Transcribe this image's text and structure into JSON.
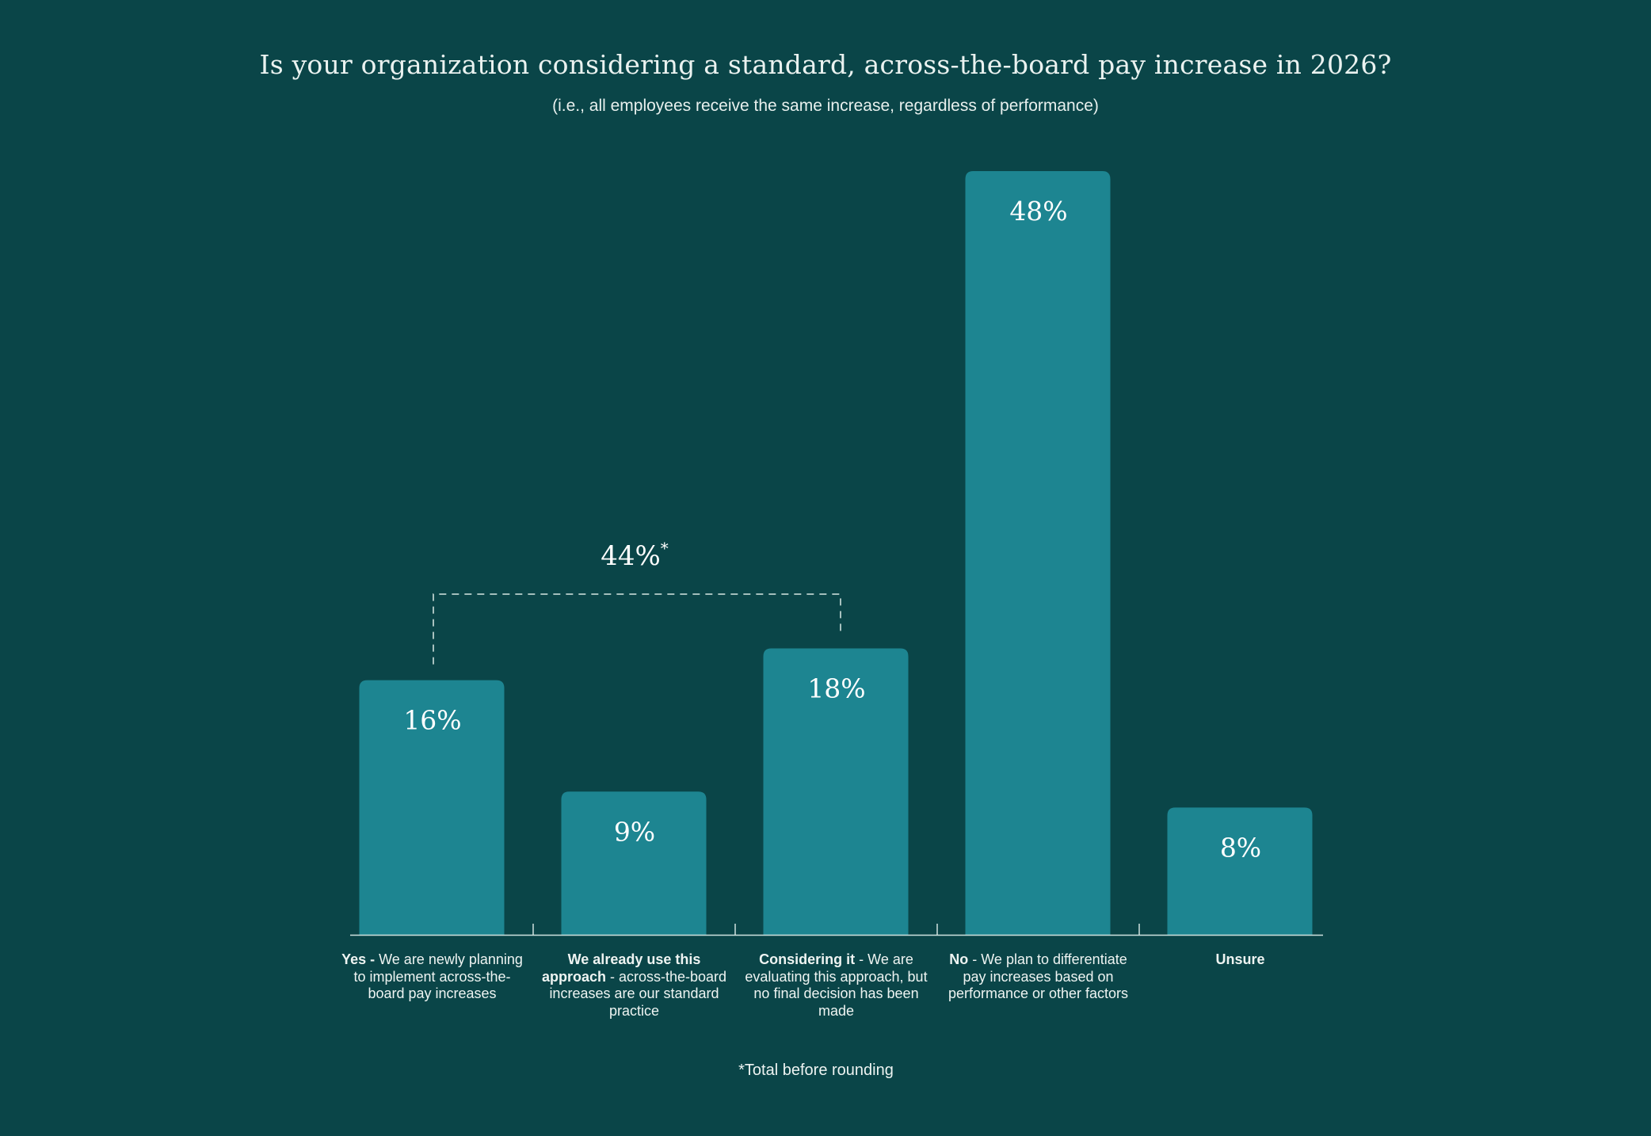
{
  "chart_data": {
    "type": "bar",
    "title": "Is your organization considering a standard, across-the-board pay increase in 2026?",
    "subtitle": "(i.e., all employees receive the same increase, regardless of performance)",
    "categories": [
      {
        "bold": "Yes -",
        "rest": " We are newly planning to implement across-the-board pay increases"
      },
      {
        "bold": "We already use this approach",
        "rest": " - across-the-board increases are our standard practice"
      },
      {
        "bold": "Considering it",
        "rest": " - We are evaluating this approach, but no final decision has been made"
      },
      {
        "bold": "No",
        "rest": " - We plan to differentiate pay increases based on performance or other factors"
      },
      {
        "bold": "Unsure",
        "rest": ""
      }
    ],
    "values": [
      16,
      9,
      18,
      48,
      8
    ],
    "value_labels": [
      "16%",
      "9%",
      "18%",
      "48%",
      "8%"
    ],
    "ylim": [
      0,
      48
    ],
    "bracket": {
      "label": "44%",
      "marker": "*",
      "spans_categories": [
        0,
        2
      ]
    },
    "footnote": "*Total before rounding",
    "colors": {
      "background": "#0a4548",
      "bar": "#1d8591",
      "axis": "#cfe2df",
      "bracket": "#b9cfcc",
      "text": "#ffffff"
    }
  }
}
